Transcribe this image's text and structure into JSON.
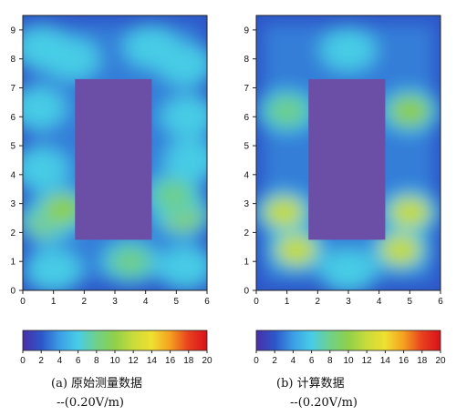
{
  "chart_data": [
    {
      "type": "heatmap",
      "panel": "a",
      "caption": "(a) 原始测量数据",
      "unit": "--(0.20V/m)",
      "xlim": [
        0,
        6
      ],
      "ylim": [
        0,
        9.5
      ],
      "xticks": [
        "0",
        "1",
        "2",
        "3",
        "4",
        "5",
        "6"
      ],
      "yticks": [
        "0",
        "1",
        "2",
        "3",
        "4",
        "5",
        "6",
        "7",
        "8",
        "9"
      ],
      "obstacle": {
        "x": [
          1.7,
          4.2
        ],
        "y": [
          1.75,
          7.3
        ]
      },
      "hotspots": [
        {
          "x": 0.6,
          "y": 8.4,
          "v": 6
        },
        {
          "x": 1.6,
          "y": 8.0,
          "v": 6
        },
        {
          "x": 4.2,
          "y": 8.4,
          "v": 6
        },
        {
          "x": 5.3,
          "y": 7.8,
          "v": 6
        },
        {
          "x": 0.5,
          "y": 6.3,
          "v": 6
        },
        {
          "x": 5.4,
          "y": 6.0,
          "v": 6
        },
        {
          "x": 0.6,
          "y": 4.2,
          "v": 6
        },
        {
          "x": 5.5,
          "y": 4.5,
          "v": 6
        },
        {
          "x": 0.8,
          "y": 2.4,
          "v": 10
        },
        {
          "x": 1.3,
          "y": 2.8,
          "v": 9
        },
        {
          "x": 5.2,
          "y": 2.6,
          "v": 9
        },
        {
          "x": 4.9,
          "y": 3.3,
          "v": 8
        },
        {
          "x": 1.0,
          "y": 0.7,
          "v": 6
        },
        {
          "x": 3.5,
          "y": 1.0,
          "v": 7
        },
        {
          "x": 5.3,
          "y": 0.8,
          "v": 6
        }
      ],
      "colorbar": {
        "min": 0,
        "max": 20,
        "ticks": [
          "0",
          "2",
          "4",
          "6",
          "8",
          "10",
          "12",
          "14",
          "16",
          "18",
          "20"
        ]
      }
    },
    {
      "type": "heatmap",
      "panel": "b",
      "caption": "(b) 计算数据",
      "unit": "--(0.20V/m)",
      "xlim": [
        0,
        6
      ],
      "ylim": [
        0,
        9.5
      ],
      "xticks": [
        "0",
        "1",
        "2",
        "3",
        "4",
        "5",
        "6"
      ],
      "yticks": [
        "0",
        "1",
        "2",
        "3",
        "4",
        "5",
        "6",
        "7",
        "8",
        "9"
      ],
      "obstacle": {
        "x": [
          1.7,
          4.2
        ],
        "y": [
          1.75,
          7.3
        ]
      },
      "hotspots": [
        {
          "x": 1.0,
          "y": 6.2,
          "v": 8
        },
        {
          "x": 5.0,
          "y": 6.2,
          "v": 10
        },
        {
          "x": 0.9,
          "y": 2.7,
          "v": 12
        },
        {
          "x": 5.0,
          "y": 2.7,
          "v": 12
        },
        {
          "x": 1.3,
          "y": 1.4,
          "v": 11
        },
        {
          "x": 4.7,
          "y": 1.4,
          "v": 11
        },
        {
          "x": 3.0,
          "y": 8.3,
          "v": 5
        },
        {
          "x": 3.0,
          "y": 0.7,
          "v": 6
        }
      ],
      "colorbar": {
        "min": 0,
        "max": 20,
        "ticks": [
          "0",
          "2",
          "4",
          "6",
          "8",
          "10",
          "12",
          "14",
          "16",
          "18",
          "20"
        ]
      }
    }
  ],
  "colors": {
    "background_low": "#4a2fa8",
    "obstacle": "#6b4fa6",
    "scale": [
      "#4a2fa8",
      "#2d56c8",
      "#3a9ee6",
      "#48cde6",
      "#6fd08a",
      "#8fd04a",
      "#c8dc3a",
      "#f0e030",
      "#f5a020",
      "#e8401e",
      "#d8101a"
    ]
  }
}
